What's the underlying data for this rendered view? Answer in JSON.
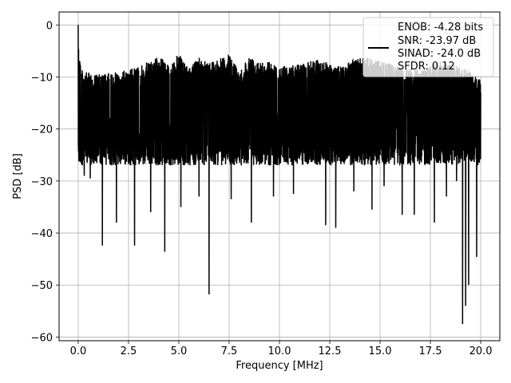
{
  "chart_data": {
    "type": "line",
    "title": "",
    "xlabel": "Frequency [MHz]",
    "ylabel": "PSD [dB]",
    "xlim": [
      -0.95,
      20.95
    ],
    "ylim": [
      -60.7,
      2.5
    ],
    "x_ticks": [
      0.0,
      2.5,
      5.0,
      7.5,
      10.0,
      12.5,
      15.0,
      17.5,
      20.0
    ],
    "x_tick_labels": [
      "0.0",
      "2.5",
      "5.0",
      "7.5",
      "10.0",
      "12.5",
      "15.0",
      "17.5",
      "20.0"
    ],
    "y_ticks": [
      0,
      -10,
      -20,
      -30,
      -40,
      -50,
      -60
    ],
    "y_tick_labels": [
      "0",
      "−10",
      "−20",
      "−30",
      "−40",
      "−50",
      "−60"
    ],
    "grid": true,
    "legend_position": "top-right",
    "legend": {
      "lines": [
        "ENOB: -4.28 bits",
        "SNR: -23.97 dB",
        "SINAD: -24.0 dB",
        "SFDR: 0.12"
      ]
    },
    "series": [
      {
        "color": "#000000",
        "x_range": [
          0.0,
          20.0
        ],
        "envelope_top": [
          [
            0.0,
            0.0
          ],
          [
            0.05,
            -5.0
          ],
          [
            0.15,
            -8.0
          ],
          [
            0.3,
            -9.0
          ],
          [
            1.0,
            -9.5
          ],
          [
            2.0,
            -9.0
          ],
          [
            3.0,
            -8.0
          ],
          [
            4.0,
            -6.0
          ],
          [
            4.5,
            -7.5
          ],
          [
            5.0,
            -5.5
          ],
          [
            5.5,
            -8.5
          ],
          [
            6.0,
            -6.0
          ],
          [
            6.5,
            -7.0
          ],
          [
            7.0,
            -6.5
          ],
          [
            7.5,
            -5.8
          ],
          [
            8.0,
            -8.5
          ],
          [
            8.5,
            -6.0
          ],
          [
            9.0,
            -6.5
          ],
          [
            9.5,
            -7.0
          ],
          [
            10.0,
            -8.0
          ],
          [
            11.0,
            -7.5
          ],
          [
            12.0,
            -6.5
          ],
          [
            13.0,
            -8.0
          ],
          [
            14.0,
            -6.0
          ],
          [
            15.0,
            -6.8
          ],
          [
            16.0,
            -8.0
          ],
          [
            17.0,
            -8.5
          ],
          [
            18.0,
            -7.0
          ],
          [
            19.0,
            -8.0
          ],
          [
            19.5,
            -9.0
          ],
          [
            20.0,
            -10.5
          ]
        ],
        "envelope_band": [
          [
            0.0,
            -22.0
          ],
          [
            20.0,
            -22.0
          ]
        ],
        "dips": [
          [
            0.1,
            -26.3
          ],
          [
            0.3,
            -29.0
          ],
          [
            0.6,
            -29.5
          ],
          [
            1.2,
            -42.4
          ],
          [
            1.9,
            -38.0
          ],
          [
            2.8,
            -42.4
          ],
          [
            3.6,
            -36.0
          ],
          [
            4.3,
            -43.6
          ],
          [
            5.1,
            -35.0
          ],
          [
            6.0,
            -33.0
          ],
          [
            6.5,
            -51.8
          ],
          [
            7.6,
            -33.5
          ],
          [
            8.6,
            -38.0
          ],
          [
            9.7,
            -33.0
          ],
          [
            10.7,
            -32.5
          ],
          [
            12.3,
            -38.5
          ],
          [
            12.8,
            -39.0
          ],
          [
            13.7,
            -32.0
          ],
          [
            14.6,
            -35.5
          ],
          [
            15.2,
            -31.0
          ],
          [
            16.1,
            -36.5
          ],
          [
            16.7,
            -36.5
          ],
          [
            17.7,
            -38.0
          ],
          [
            18.3,
            -33.0
          ],
          [
            18.8,
            -30.0
          ],
          [
            19.1,
            -57.5
          ],
          [
            19.25,
            -54.0
          ],
          [
            19.4,
            -50.0
          ],
          [
            19.8,
            -44.6
          ]
        ]
      }
    ]
  }
}
